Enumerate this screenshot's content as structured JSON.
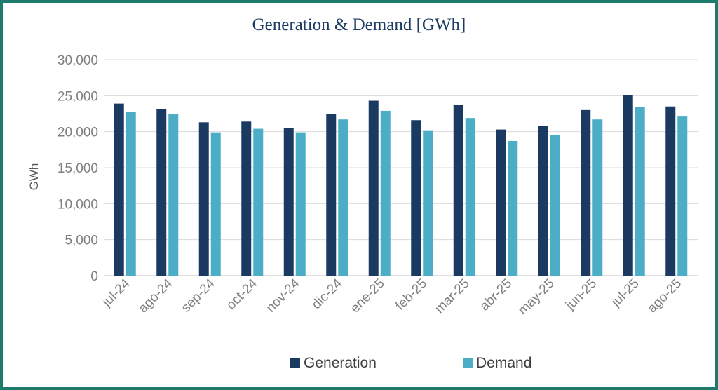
{
  "chart_data": {
    "type": "bar",
    "title": "Generation & Demand [GWh]",
    "xlabel": "",
    "ylabel": "GWh",
    "ylim": [
      0,
      30000
    ],
    "yticks": [
      "0",
      "5,000",
      "10,000",
      "15,000",
      "20,000",
      "25,000",
      "30,000"
    ],
    "yticks_values": [
      0,
      5000,
      10000,
      15000,
      20000,
      25000,
      30000
    ],
    "categories": [
      "jul-24",
      "ago-24",
      "sep-24",
      "oct-24",
      "nov-24",
      "dic-24",
      "ene-25",
      "feb-25",
      "mar-25",
      "abr-25",
      "may-25",
      "jun-25",
      "jul-25",
      "ago-25"
    ],
    "series": [
      {
        "name": "Generation",
        "color": "#1b3a62",
        "values": [
          23900,
          23100,
          21300,
          21400,
          20500,
          22500,
          24300,
          21600,
          23700,
          20300,
          20800,
          23000,
          25100,
          23500
        ]
      },
      {
        "name": "Demand",
        "color": "#4badc6",
        "values": [
          22700,
          22400,
          19900,
          20400,
          19900,
          21700,
          22900,
          20100,
          21900,
          18700,
          19500,
          21700,
          23400,
          22100
        ]
      }
    ],
    "legend": "bottom",
    "grid": true
  },
  "colors": {
    "border": "#1e7b6b",
    "title": "#1b3b63",
    "grid": "#d9d9d9"
  }
}
